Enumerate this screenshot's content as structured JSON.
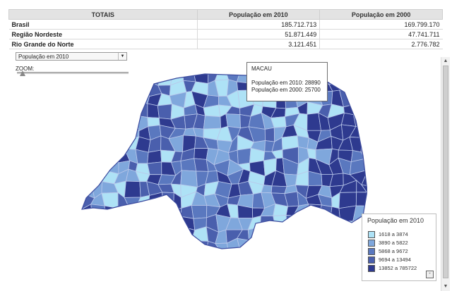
{
  "totals": {
    "headers": [
      "TOTAIS",
      "População em 2010",
      "População em 2000"
    ],
    "rows": [
      {
        "label": "Brasil",
        "pop2010": "185.712.713",
        "pop2000": "169.799.170"
      },
      {
        "label": "Região Nordeste",
        "pop2010": "51.871.449",
        "pop2000": "47.741.711"
      },
      {
        "label": "Rio Grande do Norte",
        "pop2010": "3.121.451",
        "pop2000": "2.776.782"
      }
    ]
  },
  "controls": {
    "selected_indicator": "População em 2010",
    "zoom_label": "ZOOM:",
    "zoom_level": 0.05
  },
  "tooltip": {
    "name": "MACAU",
    "line1": "População em 2010: 28890",
    "line2": "População em 2000: 25700"
  },
  "legend": {
    "title": "População em 2010",
    "items": [
      {
        "label": "1618 a 3874",
        "color": "#aee2f6"
      },
      {
        "label": "3890 a 5822",
        "color": "#7fa7dc"
      },
      {
        "label": "5868 a 9672",
        "color": "#5a78bf"
      },
      {
        "label": "9694 a 13494",
        "color": "#4a5fad"
      },
      {
        "label": "13852 a 785722",
        "color": "#2e3a8f"
      }
    ],
    "minimize_label": "-"
  },
  "map": {
    "outline_color": "#3b4a9e",
    "region_stroke": "#b9c7ea"
  },
  "scrollbar": {
    "up": "▲",
    "down": "▼"
  }
}
